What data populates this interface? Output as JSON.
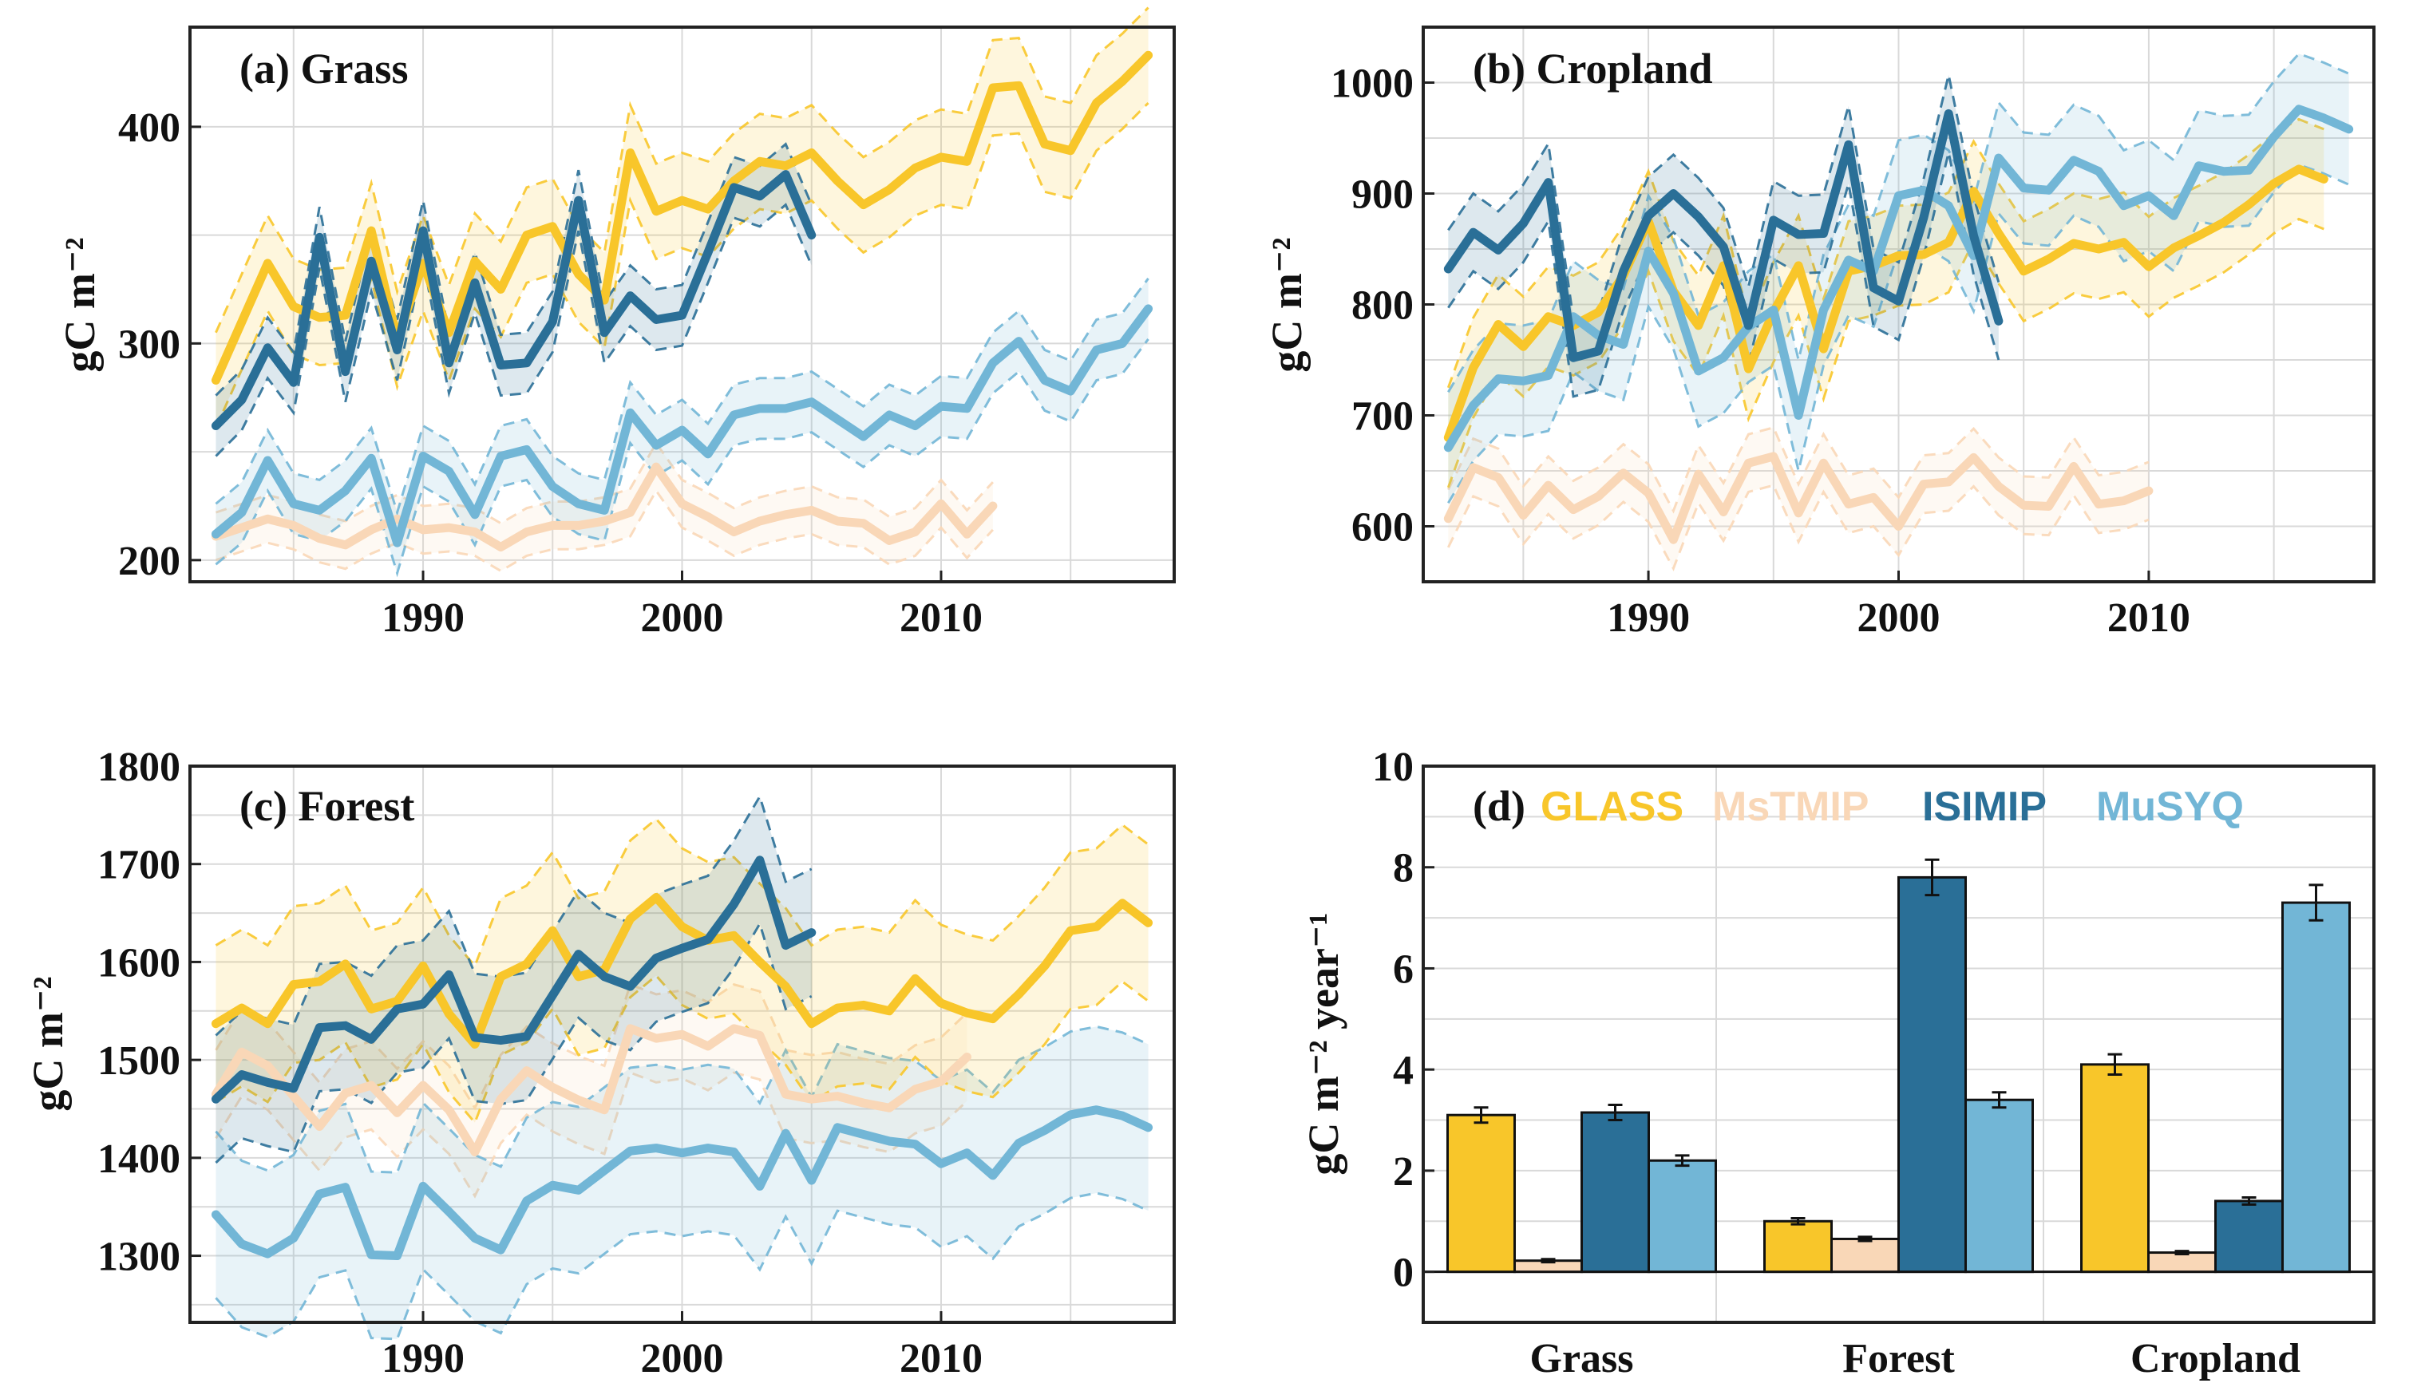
{
  "colors": {
    "GLASS": "#F8C62A",
    "MsTMIP": "#F9D7B7",
    "ISIMIP": "#2A6F97",
    "MuSYQ": "#72B6D6"
  },
  "chart_data": [
    {
      "type": "line",
      "title": "(a) Grass",
      "ylabel": "gC m⁻²",
      "xlim": [
        1981,
        2019
      ],
      "ylim": [
        190,
        446
      ],
      "xticks": [
        1990,
        2000,
        2010
      ],
      "yticks": [
        200,
        300,
        400
      ],
      "series": [
        {
          "name": "MsTMIP",
          "start": 1982,
          "values": [
            211,
            215,
            219,
            216,
            210,
            207,
            214,
            219,
            214,
            215,
            213,
            206,
            213,
            216,
            216,
            218,
            222,
            243,
            226,
            220,
            213,
            218,
            221,
            223,
            218,
            217,
            209,
            213,
            226,
            212,
            225
          ],
          "band": 11
        },
        {
          "name": "MuSYQ",
          "start": 1982,
          "values": [
            212,
            222,
            246,
            226,
            223,
            232,
            247,
            208,
            248,
            241,
            221,
            248,
            251,
            234,
            226,
            223,
            268,
            253,
            260,
            249,
            267,
            270,
            270,
            273,
            265,
            257,
            267,
            262,
            271,
            270,
            291,
            301,
            283,
            278,
            297,
            300,
            316
          ],
          "band": 14
        },
        {
          "name": "GLASS",
          "start": 1982,
          "values": [
            283,
            310,
            337,
            317,
            312,
            313,
            352,
            302,
            337,
            305,
            338,
            325,
            350,
            354,
            332,
            320,
            388,
            361,
            366,
            362,
            375,
            384,
            382,
            388,
            375,
            364,
            371,
            381,
            386,
            384,
            418,
            419,
            392,
            389,
            411,
            421,
            433
          ],
          "band": 22
        },
        {
          "name": "ISIMIP",
          "start": 1982,
          "values": [
            262,
            274,
            298,
            282,
            349,
            287,
            338,
            297,
            352,
            291,
            328,
            290,
            291,
            310,
            366,
            305,
            322,
            311,
            313,
            342,
            372,
            368,
            378,
            350
          ],
          "band": 14
        }
      ]
    },
    {
      "type": "line",
      "title": "(b) Cropland",
      "ylabel": "gC m⁻²",
      "xlim": [
        1981,
        2019
      ],
      "ylim": [
        550,
        1050
      ],
      "xticks": [
        1990,
        2000,
        2010
      ],
      "yticks": [
        600,
        700,
        800,
        900,
        1000
      ],
      "series": [
        {
          "name": "MsTMIP",
          "start": 1982,
          "values": [
            607,
            653,
            644,
            610,
            637,
            615,
            627,
            648,
            630,
            588,
            647,
            613,
            657,
            663,
            612,
            657,
            620,
            626,
            600,
            638,
            640,
            662,
            636,
            619,
            618,
            654,
            620,
            623,
            632
          ],
          "band": 26
        },
        {
          "name": "GLASS",
          "start": 1982,
          "values": [
            680,
            743,
            782,
            762,
            789,
            781,
            793,
            826,
            875,
            812,
            781,
            835,
            742,
            793,
            835,
            760,
            830,
            835,
            844,
            845,
            856,
            902,
            864,
            830,
            841,
            855,
            850,
            856,
            834,
            851,
            862,
            874,
            890,
            909,
            922,
            913
          ],
          "band": 45
        },
        {
          "name": "MuSYQ",
          "start": 1982,
          "values": [
            671,
            709,
            733,
            731,
            736,
            789,
            772,
            764,
            848,
            810,
            740,
            752,
            780,
            795,
            700,
            795,
            840,
            830,
            898,
            903,
            889,
            844,
            932,
            905,
            903,
            930,
            920,
            889,
            898,
            880,
            925,
            920,
            921,
            951,
            976,
            968,
            958
          ],
          "band": 50
        },
        {
          "name": "ISIMIP",
          "start": 1982,
          "values": [
            832,
            865,
            849,
            873,
            910,
            752,
            758,
            830,
            880,
            900,
            879,
            852,
            781,
            876,
            863,
            864,
            944,
            815,
            803,
            878,
            972,
            862,
            785
          ],
          "band": 35
        }
      ]
    },
    {
      "type": "line",
      "title": "(c) Forest",
      "ylabel": "gC m⁻²",
      "xlim": [
        1981,
        2019
      ],
      "ylim": [
        1232,
        1800
      ],
      "xticks": [
        1990,
        2000,
        2010
      ],
      "yticks": [
        1300,
        1400,
        1500,
        1600,
        1700,
        1800
      ],
      "series": [
        {
          "name": "MsTMIP",
          "start": 1982,
          "values": [
            1465,
            1508,
            1494,
            1463,
            1432,
            1466,
            1474,
            1446,
            1474,
            1449,
            1406,
            1460,
            1489,
            1472,
            1459,
            1449,
            1532,
            1522,
            1526,
            1514,
            1532,
            1525,
            1465,
            1460,
            1463,
            1456,
            1451,
            1470,
            1478,
            1503
          ],
          "band": 45
        },
        {
          "name": "MuSYQ",
          "start": 1982,
          "values": [
            1342,
            1312,
            1302,
            1318,
            1363,
            1370,
            1301,
            1300,
            1371,
            1345,
            1318,
            1306,
            1356,
            1372,
            1367,
            1387,
            1407,
            1410,
            1405,
            1410,
            1406,
            1371,
            1425,
            1377,
            1431,
            1424,
            1417,
            1414,
            1394,
            1405,
            1382,
            1415,
            1428,
            1444,
            1449,
            1443,
            1431
          ],
          "band": 85
        },
        {
          "name": "GLASS",
          "start": 1982,
          "values": [
            1537,
            1553,
            1537,
            1577,
            1580,
            1598,
            1552,
            1560,
            1596,
            1547,
            1516,
            1585,
            1598,
            1632,
            1585,
            1592,
            1644,
            1666,
            1636,
            1622,
            1627,
            1600,
            1575,
            1537,
            1553,
            1556,
            1550,
            1583,
            1558,
            1548,
            1542,
            1567,
            1596,
            1632,
            1636,
            1660,
            1640
          ],
          "band": 80
        },
        {
          "name": "ISIMIP",
          "start": 1982,
          "values": [
            1460,
            1485,
            1477,
            1471,
            1533,
            1535,
            1521,
            1552,
            1557,
            1587,
            1523,
            1520,
            1524,
            1566,
            1608,
            1585,
            1575,
            1604,
            1614,
            1623,
            1659,
            1704,
            1617,
            1630
          ],
          "band": 65
        }
      ]
    },
    {
      "type": "bar",
      "title": "(d)",
      "ylabel": "gC m⁻² year⁻¹",
      "ylim": [
        -1,
        10
      ],
      "yticks": [
        0,
        2,
        4,
        6,
        8,
        10
      ],
      "categories": [
        "Grass",
        "Forest",
        "Cropland"
      ],
      "legend": [
        "GLASS",
        "MsTMIP",
        "ISIMIP",
        "MuSYQ"
      ],
      "series": [
        {
          "name": "GLASS",
          "values": [
            3.1,
            1.0,
            4.1
          ],
          "errors": [
            0.15,
            0.06,
            0.2
          ]
        },
        {
          "name": "MsTMIP",
          "values": [
            0.22,
            0.65,
            0.38
          ],
          "errors": [
            0.03,
            0.04,
            0.03
          ]
        },
        {
          "name": "ISIMIP",
          "values": [
            3.15,
            7.8,
            1.4
          ],
          "errors": [
            0.15,
            0.35,
            0.07
          ]
        },
        {
          "name": "MuSYQ",
          "values": [
            2.2,
            3.4,
            7.3
          ],
          "errors": [
            0.1,
            0.15,
            0.35
          ]
        }
      ]
    }
  ]
}
